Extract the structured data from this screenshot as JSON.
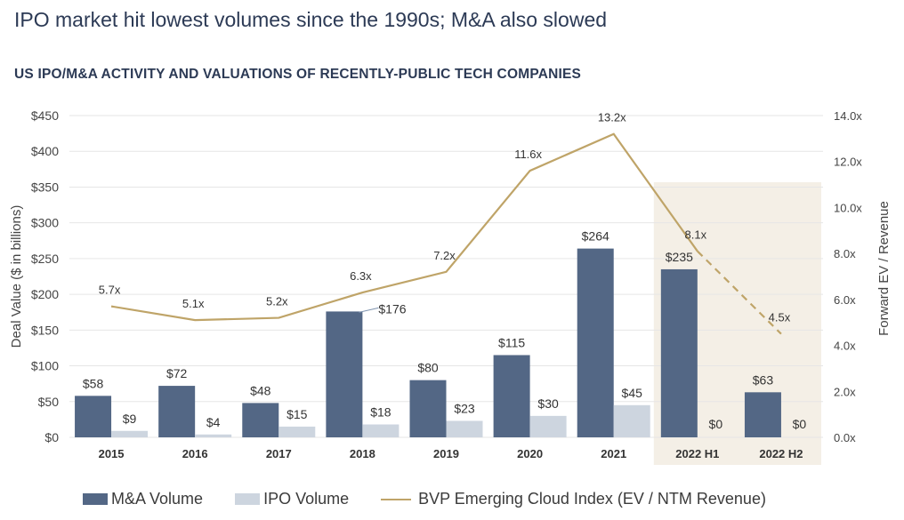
{
  "header": {
    "title": "IPO market hit lowest volumes since the 1990s; M&A also slowed",
    "subtitle": "US IPO/M&A ACTIVITY AND VALUATIONS OF RECENTLY-PUBLIC TECH COMPANIES"
  },
  "colors": {
    "ma": "#536785",
    "ipo": "#cdd5df",
    "line": "#bfa468",
    "highlight": "#f4efe6",
    "grid": "#e6e6e6",
    "text": "#333333"
  },
  "chart_data": {
    "type": "bar",
    "categories": [
      "2015",
      "2016",
      "2017",
      "2018",
      "2019",
      "2020",
      "2021",
      "2022 H1",
      "2022 H2"
    ],
    "series": [
      {
        "name": "M&A Volume",
        "values": [
          58,
          72,
          48,
          176,
          80,
          115,
          264,
          235,
          63
        ],
        "labels": [
          "$58",
          "$72",
          "$48",
          "$176",
          "$80",
          "$115",
          "$264",
          "$235",
          "$63"
        ]
      },
      {
        "name": "IPO Volume",
        "values": [
          9,
          4,
          15,
          18,
          23,
          30,
          45,
          0,
          0
        ],
        "labels": [
          "$9",
          "$4",
          "$15",
          "$18",
          "$23",
          "$30",
          "$45",
          "$0",
          "$0"
        ]
      }
    ],
    "line_series": {
      "name": "BVP Emerging Cloud Index (EV / NTM Revenue)",
      "values": [
        5.7,
        5.1,
        5.2,
        6.3,
        7.2,
        11.6,
        13.2,
        8.1,
        4.5
      ],
      "labels": [
        "5.7x",
        "5.1x",
        "5.2x",
        "6.3x",
        "7.2x",
        "11.6x",
        "13.2x",
        "8.1x",
        "4.5x"
      ],
      "dashed_from_index": 7
    },
    "highlighted_categories": [
      "2022 H1",
      "2022 H2"
    ],
    "ylabel": "Deal Value ($ in billions)",
    "y2label": "Forward EV / Revenue",
    "ylim": [
      0,
      450
    ],
    "y2lim": [
      0,
      14
    ],
    "yticks": [
      "$0",
      "$50",
      "$100",
      "$150",
      "$200",
      "$250",
      "$300",
      "$350",
      "$400",
      "$450"
    ],
    "y2ticks": [
      "0.0x",
      "2.0x",
      "4.0x",
      "6.0x",
      "8.0x",
      "10.0x",
      "12.0x",
      "14.0x"
    ],
    "grid": true,
    "legend": "bottom"
  }
}
